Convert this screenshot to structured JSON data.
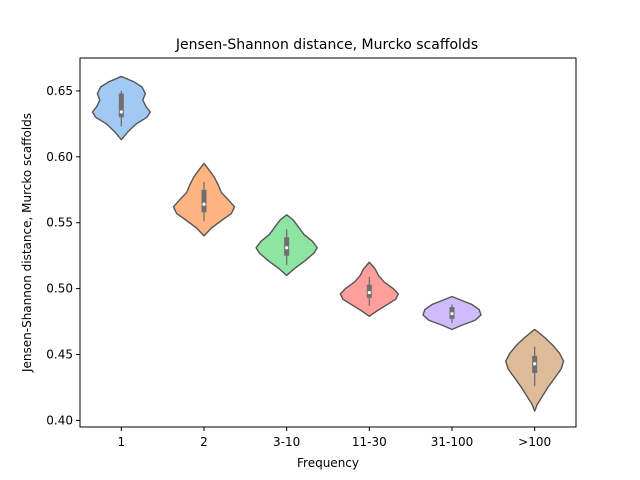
{
  "chart_data": {
    "type": "violin",
    "title": "Jensen-Shannon distance, Murcko scaffolds",
    "xlabel": "Frequency",
    "ylabel": "Jensen-Shannon distance, Murcko scaffolds",
    "categories": [
      "1",
      "2",
      "3-10",
      "11-30",
      "31-100",
      ">100"
    ],
    "ylim": [
      0.395,
      0.675
    ],
    "yticks": [
      0.4,
      0.45,
      0.5,
      0.55,
      0.6,
      0.65
    ],
    "ytick_labels": [
      "0.40",
      "0.45",
      "0.50",
      "0.55",
      "0.60",
      "0.65"
    ],
    "grid": false,
    "legend": "none",
    "violins": [
      {
        "category": "1",
        "color": "#a1c9f4",
        "whisker": [
          0.623,
          0.65
        ],
        "box": [
          0.63,
          0.648
        ],
        "median": 0.634,
        "profile": [
          [
            0.613,
            0.0
          ],
          [
            0.619,
            0.08
          ],
          [
            0.625,
            0.18
          ],
          [
            0.63,
            0.31
          ],
          [
            0.634,
            0.35
          ],
          [
            0.638,
            0.3
          ],
          [
            0.643,
            0.26
          ],
          [
            0.648,
            0.29
          ],
          [
            0.653,
            0.25
          ],
          [
            0.657,
            0.15
          ],
          [
            0.661,
            0.0
          ]
        ]
      },
      {
        "category": "2",
        "color": "#ffb482",
        "whisker": [
          0.551,
          0.581
        ],
        "box": [
          0.558,
          0.575
        ],
        "median": 0.564,
        "profile": [
          [
            0.54,
            0.0
          ],
          [
            0.546,
            0.09
          ],
          [
            0.552,
            0.22
          ],
          [
            0.557,
            0.33
          ],
          [
            0.562,
            0.37
          ],
          [
            0.567,
            0.3
          ],
          [
            0.573,
            0.21
          ],
          [
            0.579,
            0.17
          ],
          [
            0.585,
            0.12
          ],
          [
            0.591,
            0.05
          ],
          [
            0.595,
            0.0
          ]
        ]
      },
      {
        "category": "3-10",
        "color": "#8de5a1",
        "whisker": [
          0.518,
          0.545
        ],
        "box": [
          0.525,
          0.539
        ],
        "median": 0.531,
        "profile": [
          [
            0.51,
            0.0
          ],
          [
            0.515,
            0.09
          ],
          [
            0.521,
            0.22
          ],
          [
            0.527,
            0.33
          ],
          [
            0.531,
            0.37
          ],
          [
            0.536,
            0.31
          ],
          [
            0.541,
            0.21
          ],
          [
            0.547,
            0.14
          ],
          [
            0.552,
            0.08
          ],
          [
            0.556,
            0.0
          ]
        ]
      },
      {
        "category": "11-30",
        "color": "#ff9f9b",
        "whisker": [
          0.487,
          0.509
        ],
        "box": [
          0.493,
          0.503
        ],
        "median": 0.497,
        "profile": [
          [
            0.479,
            0.0
          ],
          [
            0.483,
            0.09
          ],
          [
            0.488,
            0.22
          ],
          [
            0.492,
            0.32
          ],
          [
            0.496,
            0.35
          ],
          [
            0.5,
            0.29
          ],
          [
            0.505,
            0.18
          ],
          [
            0.51,
            0.11
          ],
          [
            0.515,
            0.07
          ],
          [
            0.52,
            0.0
          ]
        ]
      },
      {
        "category": "31-100",
        "color": "#d0bbff",
        "whisker": [
          0.474,
          0.488
        ],
        "box": [
          0.477,
          0.486
        ],
        "median": 0.481,
        "profile": [
          [
            0.469,
            0.0
          ],
          [
            0.472,
            0.11
          ],
          [
            0.476,
            0.28
          ],
          [
            0.48,
            0.35
          ],
          [
            0.484,
            0.33
          ],
          [
            0.488,
            0.24
          ],
          [
            0.491,
            0.12
          ],
          [
            0.494,
            0.0
          ]
        ]
      },
      {
        "category": ">100",
        "color": "#debb9b",
        "whisker": [
          0.426,
          0.456
        ],
        "box": [
          0.436,
          0.449
        ],
        "median": 0.443,
        "profile": [
          [
            0.407,
            0.0
          ],
          [
            0.412,
            0.03
          ],
          [
            0.418,
            0.09
          ],
          [
            0.425,
            0.16
          ],
          [
            0.432,
            0.24
          ],
          [
            0.439,
            0.32
          ],
          [
            0.445,
            0.35
          ],
          [
            0.451,
            0.3
          ],
          [
            0.457,
            0.22
          ],
          [
            0.463,
            0.12
          ],
          [
            0.469,
            0.0
          ]
        ]
      }
    ]
  }
}
